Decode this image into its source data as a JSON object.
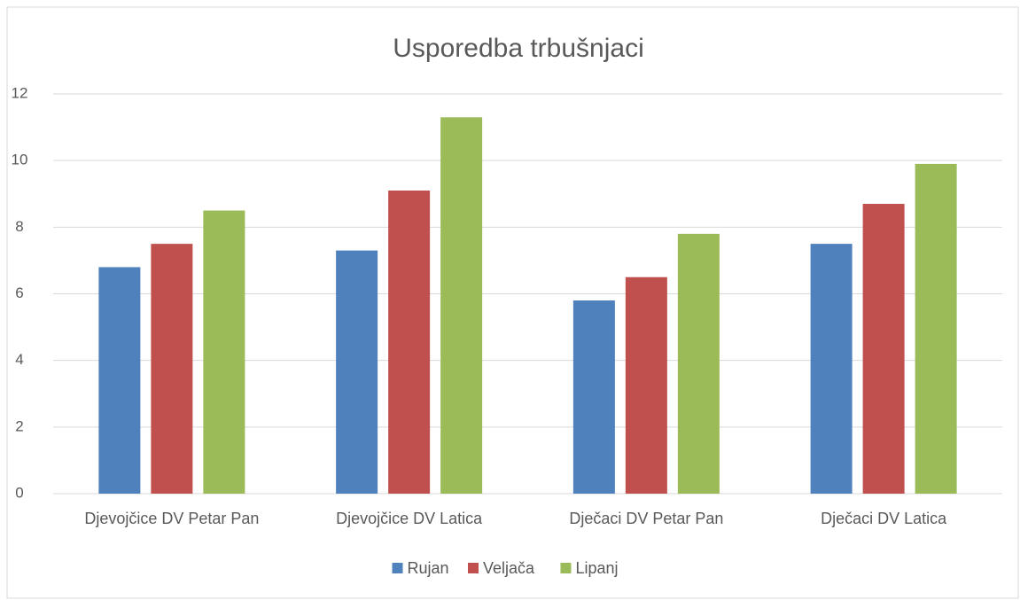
{
  "chart_data": {
    "type": "bar",
    "title": "Usporedba trbušnjaci",
    "categories": [
      "Djevojčice DV Petar Pan",
      "Djevojčice DV Latica",
      "Dječaci DV Petar Pan",
      "Dječaci DV Latica"
    ],
    "series": [
      {
        "name": "Rujan",
        "color": "#4f81bd",
        "values": [
          6.8,
          7.3,
          5.8,
          7.5
        ]
      },
      {
        "name": "Veljača",
        "color": "#c0504d",
        "values": [
          7.5,
          9.1,
          6.5,
          8.7
        ]
      },
      {
        "name": "Lipanj",
        "color": "#9bbb59",
        "values": [
          8.5,
          11.3,
          7.8,
          9.9
        ]
      }
    ],
    "ylim": [
      0,
      12
    ],
    "yticks": [
      0,
      2,
      4,
      6,
      8,
      10,
      12
    ],
    "grid": true,
    "legend": "bottom"
  }
}
